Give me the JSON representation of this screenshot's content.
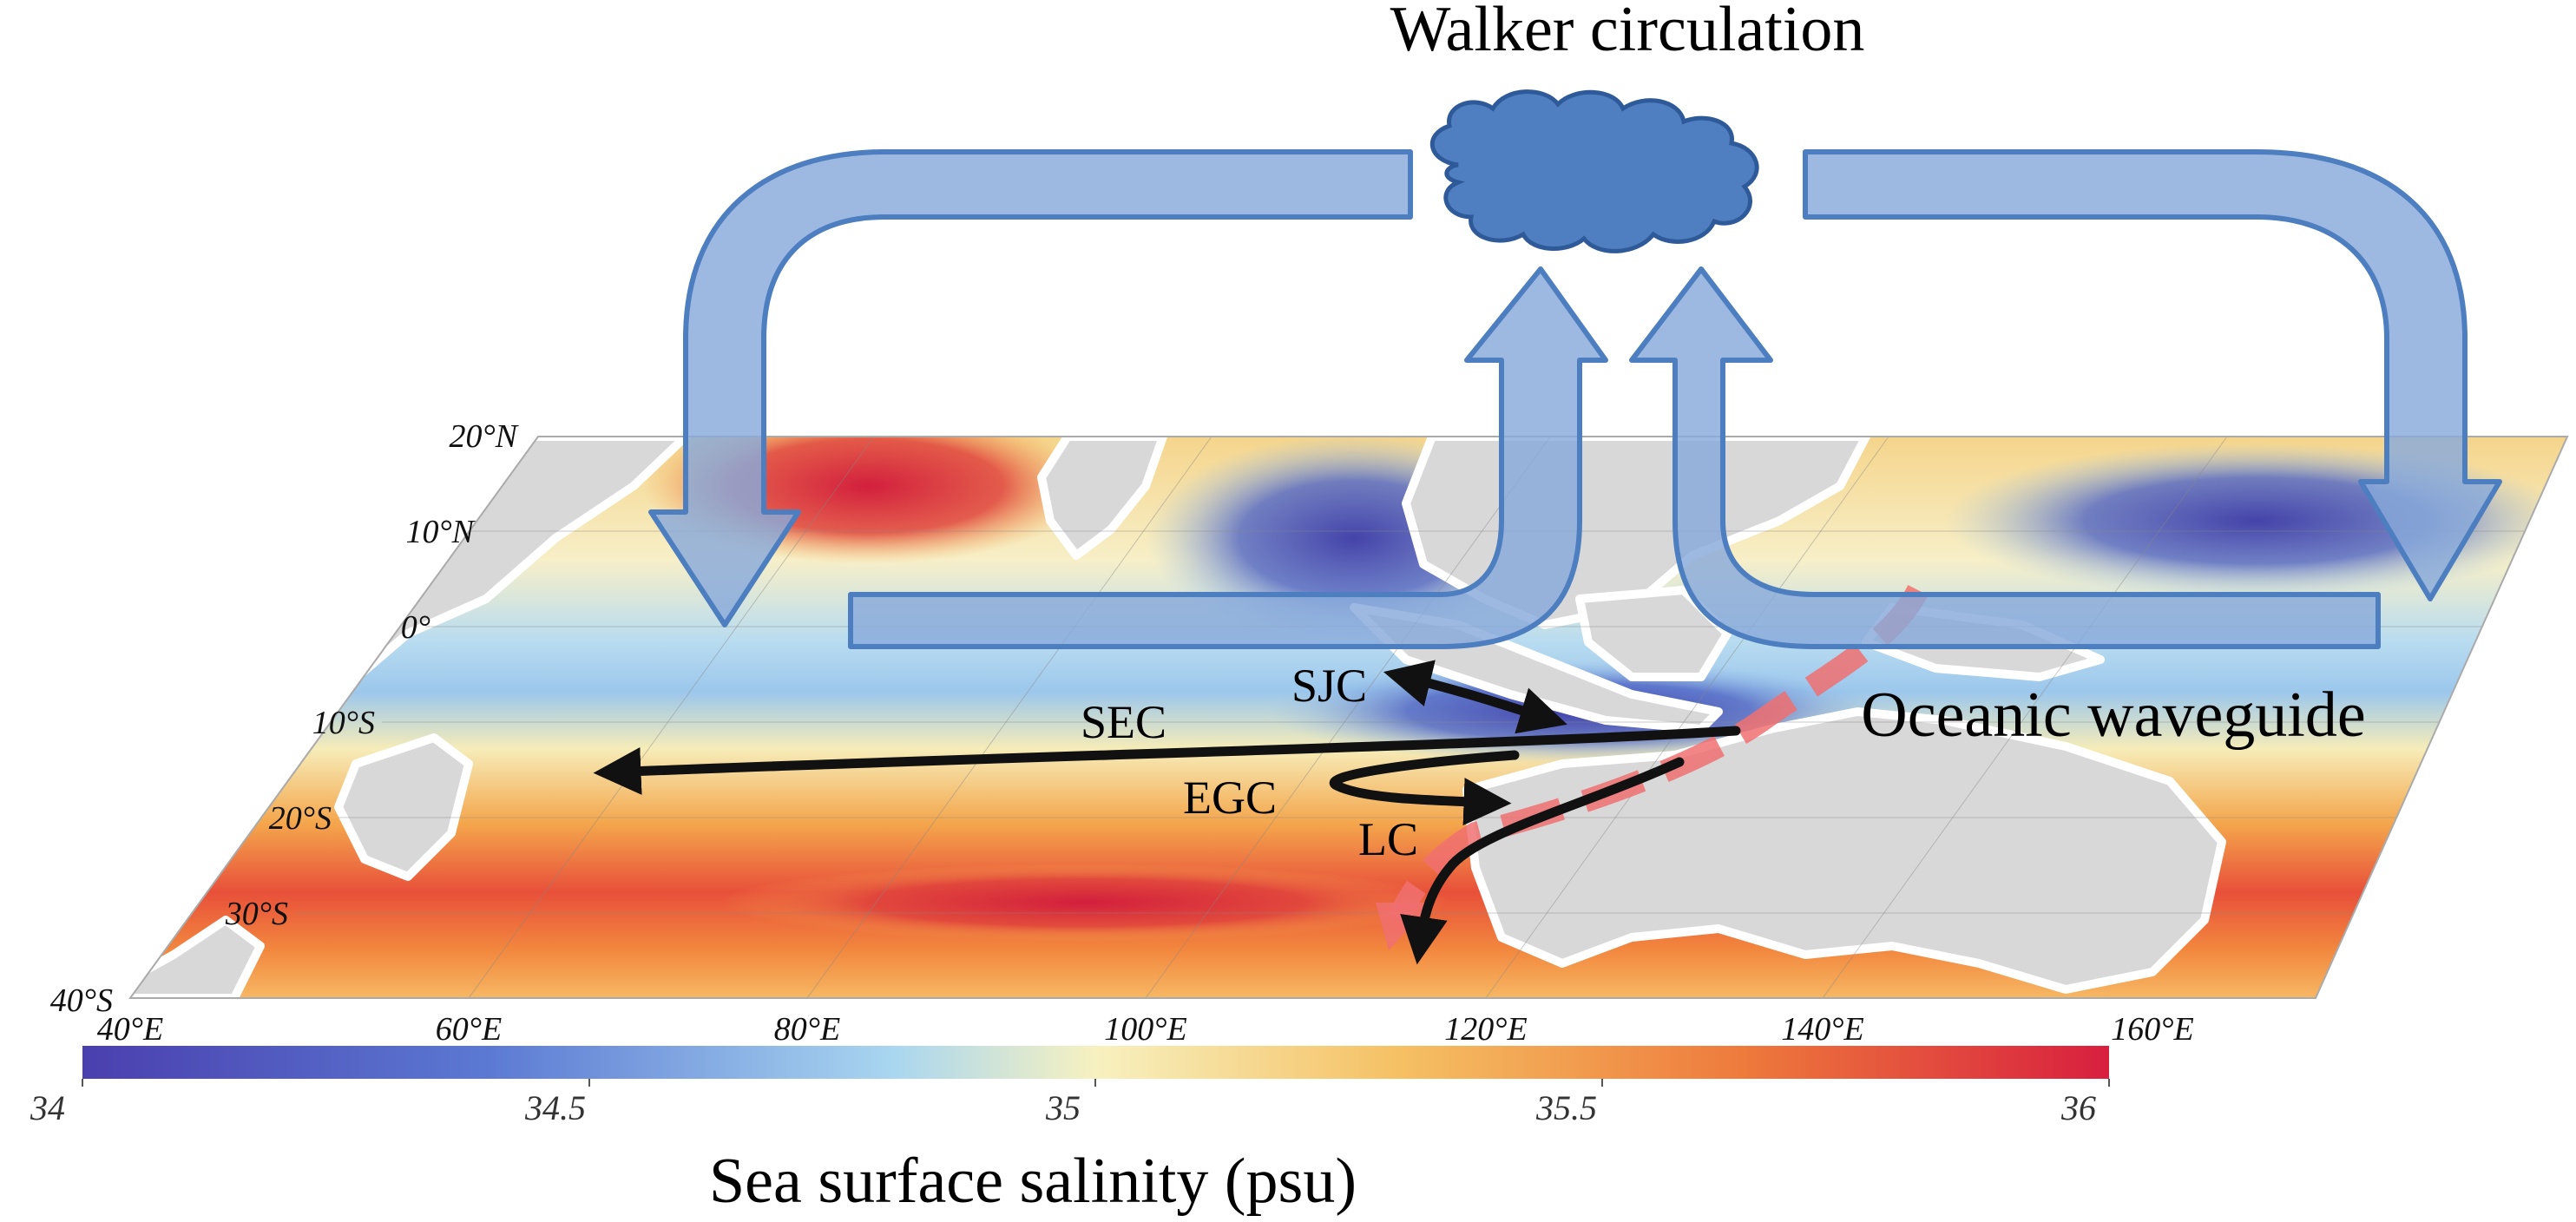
{
  "title": "Walker circulation",
  "annotation": "Oceanic waveguide",
  "colorbar": {
    "title": "Sea surface salinity (psu)",
    "ticks": [
      "34",
      "34.5",
      "35",
      "35.5",
      "36"
    ],
    "range": [
      34,
      36
    ],
    "colors": [
      "#4a3fae",
      "#5b79d3",
      "#a9d6f0",
      "#f7f1c0",
      "#f5c063",
      "#ee7a3c",
      "#d81f3f"
    ]
  },
  "axes": {
    "lat_ticks": [
      "20°N",
      "10°N",
      "0°",
      "10°S",
      "20°S",
      "30°S",
      "40°S"
    ],
    "lon_ticks": [
      "40°E",
      "60°E",
      "80°E",
      "100°E",
      "120°E",
      "140°E",
      "160°E"
    ]
  },
  "currents": [
    {
      "id": "SEC",
      "label": "SEC"
    },
    {
      "id": "SJC",
      "label": "SJC"
    },
    {
      "id": "EGC",
      "label": "EGC"
    },
    {
      "id": "LC",
      "label": "LC"
    }
  ],
  "colors": {
    "land": "#d8d8d8",
    "coast": "#ffffff",
    "walker_arrow": "#89aadb",
    "walker_stroke": "#4d7ec0",
    "cloud": "#4f7fc0",
    "current_arrow": "#111111",
    "waveguide": "#f07070"
  }
}
